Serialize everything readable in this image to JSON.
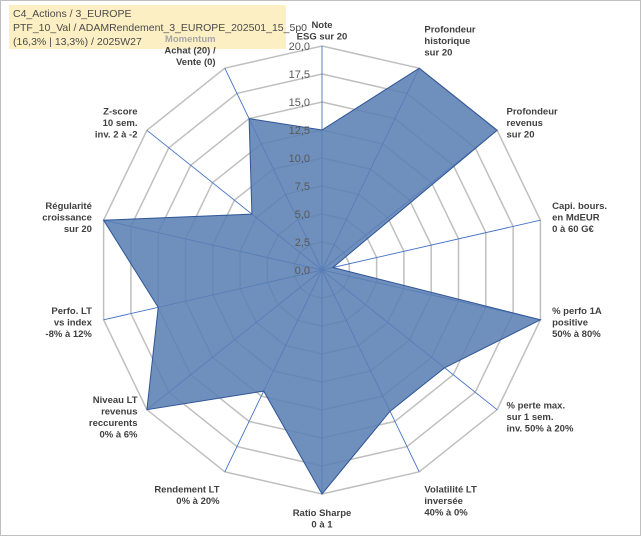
{
  "header": {
    "line1": "C4_Actions / 3_EUROPE",
    "line2": "PTF_10_Val / ADAMRendement_3_EUROPE_202501_15_5p0",
    "line3": "(16,3% | 13,3%) / 2025W27"
  },
  "chart_data": {
    "type": "radar",
    "title": "",
    "rmax": 20,
    "ticks": [
      "0,0",
      "2,5",
      "5,0",
      "7,5",
      "10,0",
      "12,5",
      "15,0",
      "17,5",
      "20,0"
    ],
    "tick_values": [
      0,
      2.5,
      5,
      7.5,
      10,
      12.5,
      15,
      17.5,
      20
    ],
    "grid": true,
    "colors": {
      "fill": "#5b80b4",
      "stroke": "#2f5597",
      "axis": "#4472c4",
      "grid": "#bfbfbf"
    },
    "axes": [
      {
        "lines": [
          "Note",
          "ESG sur 20"
        ],
        "value": 12.5
      },
      {
        "lines": [
          "Profondeur",
          "historique",
          "sur 20"
        ],
        "value": 20
      },
      {
        "lines": [
          "Profondeur",
          "revenus",
          "sur 20"
        ],
        "value": 20
      },
      {
        "lines": [
          "Capi. bours.",
          "en MdEUR",
          "0 à 60 G€"
        ],
        "value": 1
      },
      {
        "lines": [
          "% perfo 1A",
          "positive",
          "50% à 80%"
        ],
        "value": 20
      },
      {
        "lines": [
          "% perte max.",
          "sur 1 sem.",
          "inv. 50% à 20%"
        ],
        "value": 14
      },
      {
        "lines": [
          "Volatilité LT",
          "inversée",
          "40% à 0%"
        ],
        "value": 14
      },
      {
        "lines": [
          "Ratio Sharpe",
          "0 à 1"
        ],
        "value": 20
      },
      {
        "lines": [
          "Rendement LT",
          "0% à 20%"
        ],
        "value": 12
      },
      {
        "lines": [
          "Niveau LT",
          "revenus",
          "reccurents",
          "0% à 6%"
        ],
        "value": 20
      },
      {
        "lines": [
          "Perfo. LT",
          "vs index",
          "-8% à 12%"
        ],
        "value": 15
      },
      {
        "lines": [
          "Régularité",
          "croissance",
          "sur 20"
        ],
        "value": 20
      },
      {
        "lines": [
          "Z-score",
          "10 sem.",
          "inv. 2 à -2"
        ],
        "value": 8
      },
      {
        "lines": [
          "Momentum",
          "Achat (20) /",
          "Vente (0)"
        ],
        "value": 15
      }
    ]
  }
}
